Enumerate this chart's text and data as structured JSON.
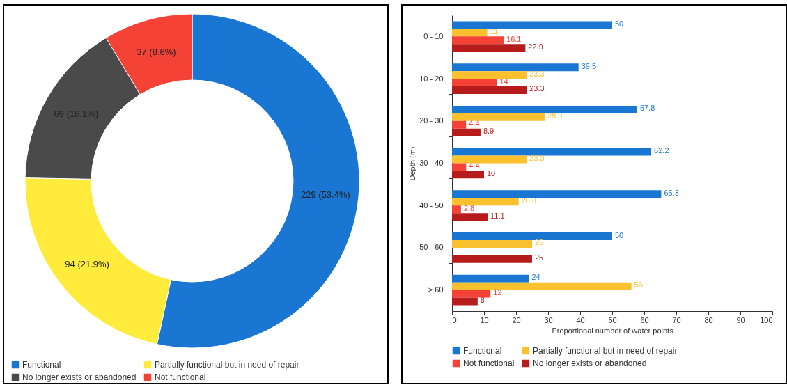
{
  "chart_data": [
    {
      "type": "donut",
      "categories": [
        "Functional",
        "Partially functional but in need of repair",
        "No longer exists or abandoned",
        "Not functional"
      ],
      "values": [
        229,
        94,
        69,
        37
      ],
      "colors": [
        "#1976d2",
        "#ffeb3b",
        "#4a4a4a",
        "#f44336"
      ],
      "value_labels": [
        "229 (53.4%)",
        "94 (21.9%)",
        "69 (16.1%)",
        "37 (8.6%)"
      ],
      "legend": "bottom"
    },
    {
      "type": "bar",
      "orientation": "horizontal",
      "xlabel": "Proportional number of water points",
      "ylabel": "Depth (m)",
      "categories": [
        "0 - 10",
        "10 - 20",
        "20 - 30",
        "30 - 40",
        "40 - 50",
        "50 - 60",
        "> 60"
      ],
      "xlim": [
        0,
        100
      ],
      "xticks": [
        0,
        10,
        20,
        30,
        40,
        50,
        60,
        70,
        80,
        90,
        100
      ],
      "grid": false,
      "legend": "bottom",
      "data_labels": true,
      "series": [
        {
          "name": "Functional",
          "color": "#1976d2",
          "values": [
            50,
            39.5,
            57.8,
            62.2,
            65.3,
            50,
            24
          ]
        },
        {
          "name": "Partially functional but in need of repair",
          "color": "#fbc02d",
          "values": [
            11,
            23.3,
            28.9,
            23.3,
            20.8,
            25,
            56
          ]
        },
        {
          "name": "Not functional",
          "color": "#f44336",
          "values": [
            16.1,
            14,
            4.4,
            4.4,
            2.8,
            null,
            12
          ]
        },
        {
          "name": "No longer exists or abandoned",
          "color": "#b71c1c",
          "values": [
            22.9,
            23.3,
            8.9,
            10,
            11.1,
            25,
            8
          ]
        }
      ]
    }
  ]
}
